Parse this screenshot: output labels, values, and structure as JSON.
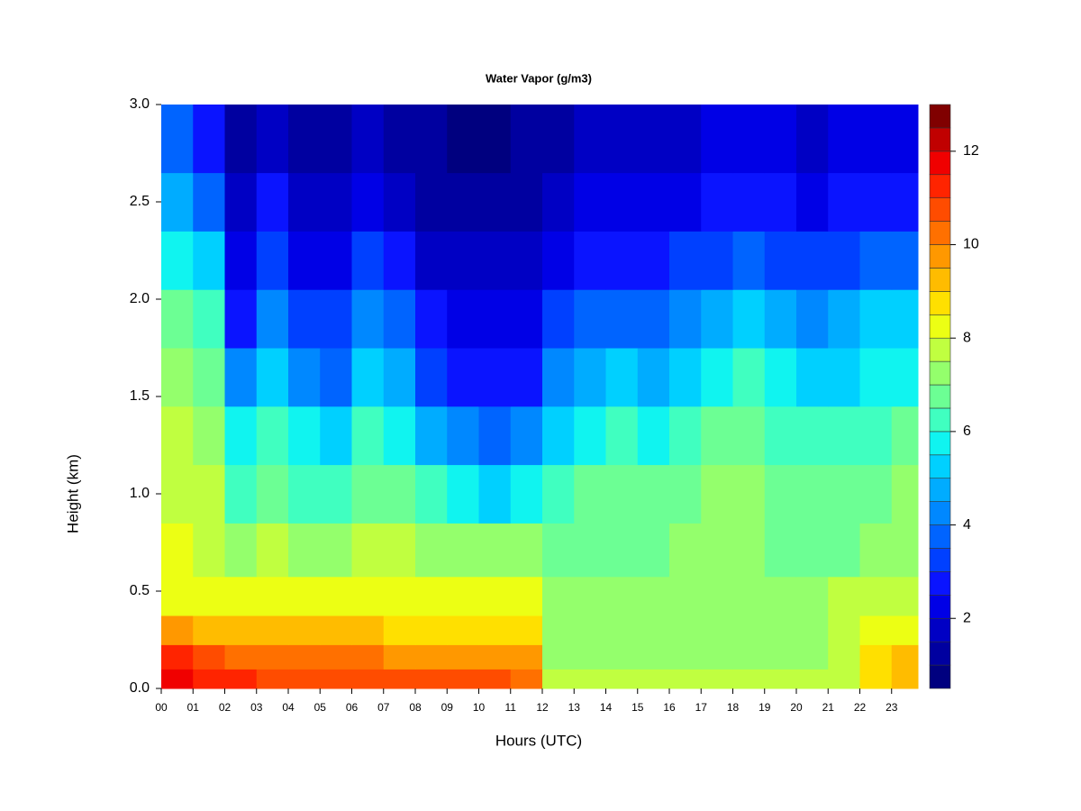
{
  "chart_data": {
    "type": "heatmap",
    "title": "Water Vapor (g/m3)",
    "x_label": "Hours (UTC)",
    "y_label": "Height (km)",
    "x": [
      0.5,
      1.5,
      2.5,
      3.5,
      4.5,
      5.5,
      6.5,
      7.5,
      8.5,
      9.5,
      10.5,
      11.5,
      12.5,
      13.5,
      14.5,
      15.5,
      16.5,
      17.5,
      18.5,
      19.5,
      20.5,
      21.5,
      22.5,
      23.5
    ],
    "y": [
      0.05,
      0.15,
      0.3,
      0.45,
      0.7,
      1.0,
      1.3,
      1.6,
      1.9,
      2.2,
      2.5,
      2.8
    ],
    "z": [
      [
        11.5,
        11,
        11,
        10.8,
        10.8,
        10.8,
        10.8,
        10.5,
        10.5,
        10.5,
        10.5,
        10,
        7.5,
        7.5,
        7.5,
        7.5,
        7.5,
        7.5,
        7.5,
        7.5,
        7.5,
        7.6,
        8.5,
        9
      ],
      [
        11,
        10.5,
        10,
        10,
        10,
        10,
        10,
        9.8,
        9.8,
        9.8,
        9.8,
        9.5,
        7.3,
        7.3,
        7.3,
        7.3,
        7.3,
        7.3,
        7.3,
        7.3,
        7.3,
        7.8,
        8.5,
        9
      ],
      [
        9.5,
        9,
        9,
        9,
        9,
        9,
        9,
        8.8,
        8.8,
        8.8,
        8.8,
        8.8,
        7.2,
        7.2,
        7.2,
        7.2,
        7.2,
        7.2,
        7.2,
        7.2,
        7.2,
        7.5,
        8,
        8.3
      ],
      [
        8.3,
        8.2,
        8.2,
        8.2,
        8.2,
        8.2,
        8.2,
        8.2,
        8.2,
        8.2,
        8.2,
        8,
        7,
        7,
        7,
        7,
        7,
        7,
        7,
        7,
        7,
        7.5,
        7.5,
        7.5
      ],
      [
        8,
        7.8,
        7.3,
        7.5,
        7.2,
        7.3,
        7.6,
        7.5,
        7.2,
        7,
        7,
        7,
        6.8,
        6.8,
        6.8,
        6.9,
        7,
        7,
        7,
        6.9,
        6.8,
        6.8,
        7,
        7.2
      ],
      [
        7.8,
        7.5,
        6.2,
        6.8,
        6.3,
        6.2,
        6.8,
        6.6,
        6.2,
        5.8,
        5.3,
        5.6,
        6.3,
        6.5,
        6.5,
        6.6,
        6.8,
        7,
        7,
        6.8,
        6.6,
        6.5,
        6.8,
        7
      ],
      [
        7.5,
        7.2,
        5.5,
        6.3,
        5.6,
        5,
        6,
        5.6,
        4.5,
        4,
        3.5,
        4,
        5.3,
        5.8,
        6,
        5.8,
        6.3,
        6.5,
        6.5,
        6.2,
        6,
        6,
        6.2,
        6.5
      ],
      [
        7,
        6.8,
        4.2,
        5.2,
        4.3,
        3.8,
        5.3,
        4.5,
        3.3,
        2.8,
        2.5,
        2.8,
        4,
        4.8,
        5,
        4.8,
        5.3,
        5.5,
        6,
        5.5,
        5.3,
        5.3,
        5.5,
        5.8
      ],
      [
        6.5,
        6,
        2.8,
        4.3,
        3,
        3,
        4.3,
        3.5,
        2.5,
        2,
        2,
        2.3,
        3,
        3.5,
        3.8,
        3.8,
        4.2,
        4.5,
        5,
        4.5,
        4.3,
        4.5,
        5,
        5
      ],
      [
        5.8,
        5,
        2,
        3.3,
        2,
        2.3,
        3,
        2.5,
        1.8,
        1.5,
        1.5,
        1.8,
        2.3,
        2.5,
        2.8,
        2.8,
        3,
        3.3,
        3.5,
        3.2,
        3,
        3.2,
        3.5,
        3.5
      ],
      [
        4.5,
        3.5,
        1.5,
        2.5,
        1.5,
        1.8,
        2,
        1.8,
        1.3,
        1.2,
        1.2,
        1.4,
        1.8,
        2,
        2,
        2,
        2.2,
        2.5,
        2.8,
        2.5,
        2.3,
        2.5,
        2.8,
        2.8
      ],
      [
        3.5,
        2.5,
        1.2,
        1.8,
        1.2,
        1.2,
        1.5,
        1.4,
        1.1,
        0.9,
        0.9,
        1.1,
        1.4,
        1.6,
        1.7,
        1.7,
        1.8,
        2,
        2.3,
        2,
        1.9,
        2,
        2.3,
        2.3
      ]
    ],
    "xlim": [
      0,
      23.83
    ],
    "ylim": [
      0,
      3
    ],
    "xticks": [
      {
        "value": 0,
        "label": "00"
      },
      {
        "value": 1,
        "label": "01"
      },
      {
        "value": 2,
        "label": "02"
      },
      {
        "value": 3,
        "label": "03"
      },
      {
        "value": 4,
        "label": "04"
      },
      {
        "value": 5,
        "label": "05"
      },
      {
        "value": 6,
        "label": "06"
      },
      {
        "value": 7,
        "label": "07"
      },
      {
        "value": 8,
        "label": "08"
      },
      {
        "value": 9,
        "label": "09"
      },
      10,
      11,
      12,
      13,
      14,
      15,
      16,
      17,
      18,
      19,
      20,
      21,
      22,
      23
    ],
    "yticks": [
      {
        "value": 0,
        "label": "0.0"
      },
      0.5,
      {
        "value": 1,
        "label": "1.0"
      },
      1.5,
      {
        "value": 2,
        "label": "2.0"
      },
      2.5,
      {
        "value": 3,
        "label": "3.0"
      }
    ],
    "colorbar": {
      "levels": [
        0.5,
        1,
        1.5,
        2,
        2.5,
        3,
        3.5,
        4,
        4.5,
        5,
        5.5,
        6,
        6.5,
        7,
        7.5,
        8,
        8.5,
        9,
        9.5,
        10,
        10.5,
        11,
        11.5,
        12,
        12.5,
        13
      ],
      "colors": [
        "#00007f",
        "#0000a0",
        "#0000c4",
        "#0000e6",
        "#0a14ff",
        "#0040ff",
        "#0064ff",
        "#0088ff",
        "#00acff",
        "#00d0ff",
        "#10f4f0",
        "#40ffc0",
        "#6cff94",
        "#94ff6c",
        "#c0ff40",
        "#ecff14",
        "#ffe000",
        "#ffbc00",
        "#ff9800",
        "#ff7000",
        "#ff4c00",
        "#ff2400",
        "#f00000",
        "#c00000",
        "#800000"
      ],
      "ticks": [
        2,
        4,
        6,
        8,
        10,
        12
      ]
    }
  }
}
